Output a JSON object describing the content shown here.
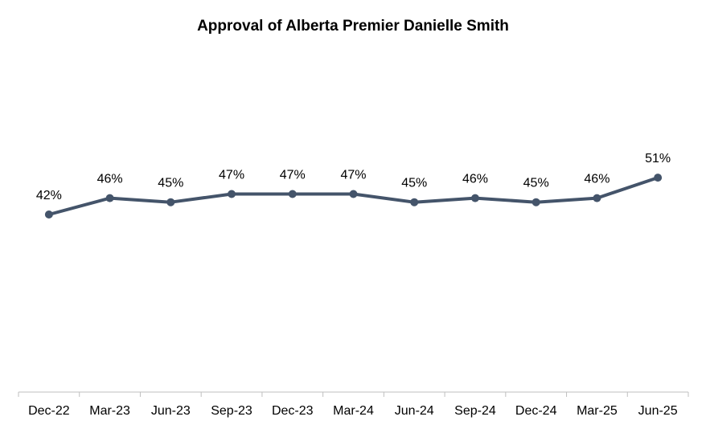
{
  "chart_data": {
    "type": "line",
    "title": "Approval of Alberta Premier Danielle Smith",
    "categories": [
      "Dec-22",
      "Mar-23",
      "Jun-23",
      "Sep-23",
      "Dec-23",
      "Mar-24",
      "Jun-24",
      "Sep-24",
      "Dec-24",
      "Mar-25",
      "Jun-25"
    ],
    "series": [
      {
        "values": [
          42,
          46,
          45,
          47,
          47,
          47,
          45,
          46,
          45,
          46,
          51
        ],
        "data_labels": [
          "42%",
          "46%",
          "45%",
          "47%",
          "47%",
          "47%",
          "45%",
          "46%",
          "45%",
          "46%",
          "51%"
        ],
        "color": "#44546A"
      }
    ],
    "xlabel": "",
    "ylabel": "",
    "grid": false,
    "legend": "none",
    "axis_color": "#BFBFBF"
  }
}
